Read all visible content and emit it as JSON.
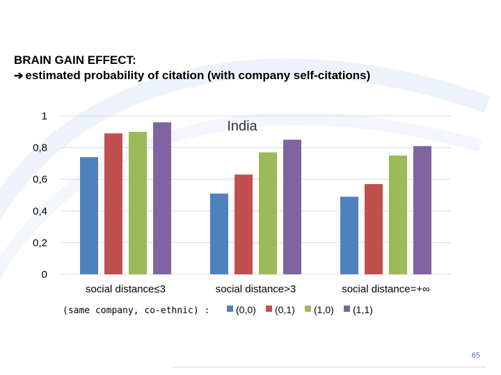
{
  "slide": {
    "title_line1": "BRAIN GAIN EFFECT:",
    "title_arrow": "➔",
    "title_line2": "estimated probability of citation (with company self-citations)",
    "page_number": "65"
  },
  "colors": {
    "series": [
      "#4f81bd",
      "#c0504d",
      "#9bbb59",
      "#8064a2"
    ],
    "gridline": "#d9d9d9",
    "text": "#000000",
    "watermark": "#eef3fb"
  },
  "chart_data": {
    "type": "bar",
    "annotation": "India",
    "categories": [
      "social distance≤3",
      "social distance>3",
      "social distance=+∞"
    ],
    "legend_title": "(same company, co-ethnic) :",
    "series": [
      {
        "name": "(0,0)",
        "values": [
          0.74,
          0.51,
          0.49
        ]
      },
      {
        "name": "(0,1)",
        "values": [
          0.89,
          0.63,
          0.57
        ]
      },
      {
        "name": "(1,0)",
        "values": [
          0.9,
          0.77,
          0.75
        ]
      },
      {
        "name": "(1,1)",
        "values": [
          0.96,
          0.85,
          0.81
        ]
      }
    ],
    "ylim": [
      0,
      1
    ],
    "yticks": [
      {
        "value": 0,
        "label": "0"
      },
      {
        "value": 0.2,
        "label": "0,2"
      },
      {
        "value": 0.4,
        "label": "0,4"
      },
      {
        "value": 0.6,
        "label": "0,6"
      },
      {
        "value": 0.8,
        "label": "0,8"
      },
      {
        "value": 1,
        "label": "1"
      }
    ],
    "grid": true,
    "legend_position": "bottom"
  }
}
